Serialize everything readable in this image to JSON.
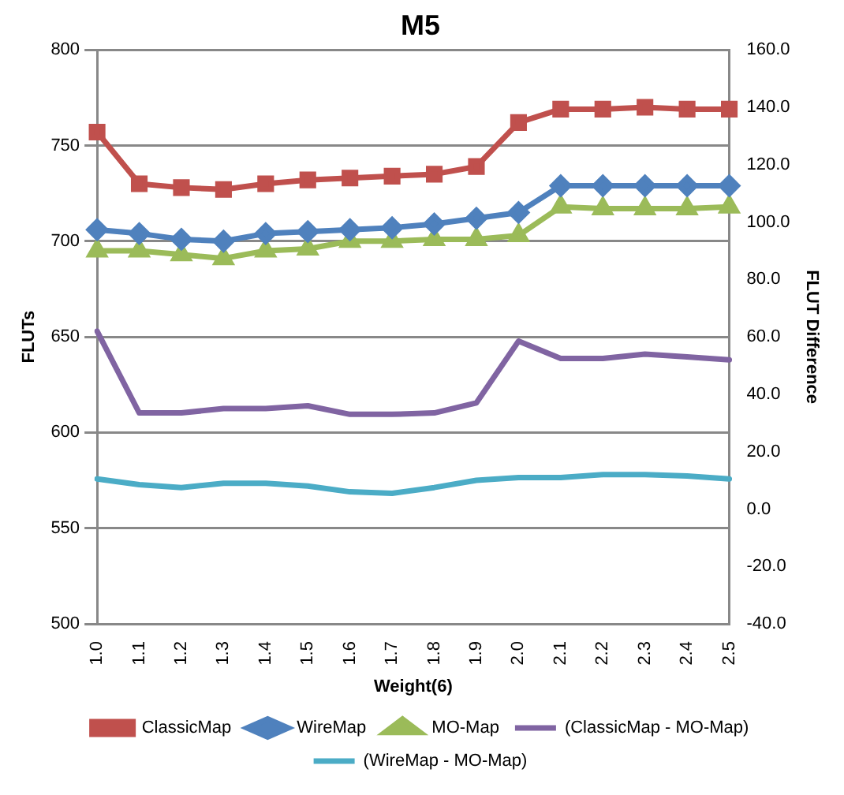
{
  "chart_data": {
    "type": "line",
    "title": "M5",
    "xlabel": "Weight(6)",
    "ylabel": "FLUTs",
    "y2label": "FLUT Difference",
    "categories": [
      "1.0",
      "1.1",
      "1.2",
      "1.3",
      "1.4",
      "1.5",
      "1.6",
      "1.7",
      "1.8",
      "1.9",
      "2.0",
      "2.1",
      "2.2",
      "2.3",
      "2.4",
      "2.5"
    ],
    "series": [
      {
        "name": "ClassicMap",
        "color": "#c0504d",
        "marker": "square",
        "values": [
          757,
          730,
          728,
          727,
          730,
          732,
          733,
          734,
          735,
          739,
          762,
          769,
          769,
          770,
          769,
          769
        ]
      },
      {
        "name": "WireMap",
        "color": "#4f81bd",
        "marker": "diamond",
        "values": [
          706,
          704,
          701,
          700,
          704,
          705,
          706,
          707,
          709,
          712,
          715,
          729,
          729,
          729,
          729,
          729
        ]
      },
      {
        "name": "MO-Map",
        "color": "#9bbb59",
        "marker": "triangle",
        "values": [
          695,
          695,
          693,
          691,
          695,
          696,
          700,
          700,
          701,
          701,
          703,
          718,
          717,
          717,
          717,
          718
        ]
      },
      {
        "name": "(ClassicMap - MO-Map)",
        "color": "#8064a2",
        "marker": "none",
        "axis": "y2",
        "values": [
          62,
          33.5,
          33.5,
          35,
          35,
          36,
          33,
          33,
          33.5,
          37,
          58.5,
          52.5,
          52.5,
          54,
          53,
          52
        ]
      },
      {
        "name": "(WireMap - MO-Map)",
        "color": "#4bacc6",
        "marker": "none",
        "axis": "y2",
        "values": [
          10.5,
          8.5,
          7.5,
          9,
          9,
          8,
          6,
          5.5,
          7.5,
          10,
          11,
          11,
          12,
          12,
          11.5,
          10.5
        ]
      }
    ],
    "ylim": [
      500,
      800
    ],
    "yticks": [
      500,
      550,
      600,
      650,
      700,
      750,
      800
    ],
    "y2lim": [
      -40,
      160
    ],
    "y2ticks": [
      {
        "value": -40,
        "label": "-40.0"
      },
      {
        "value": -20,
        "label": "-20.0"
      },
      {
        "value": 0,
        "label": "0.0"
      },
      {
        "value": 20,
        "label": "20.0"
      },
      {
        "value": 40,
        "label": "40.0"
      },
      {
        "value": 60,
        "label": "60.0"
      },
      {
        "value": 80,
        "label": "80.0"
      },
      {
        "value": 100,
        "label": "100.0"
      },
      {
        "value": 120,
        "label": "120.0"
      },
      {
        "value": 140,
        "label": "140.0"
      },
      {
        "value": 160,
        "label": "160.0"
      }
    ],
    "grid": "y",
    "legend": "bottom"
  }
}
